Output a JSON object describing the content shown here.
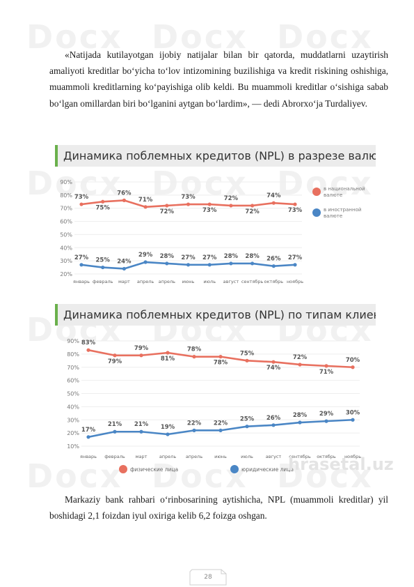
{
  "document": {
    "paragraph_1": "«Natijada kutilayotgan ijobiy natijalar bilan bir qatorda, muddatlarni uzaytirish amaliyoti kreditlar bo‘yicha to‘lov intizomining buzilishiga va kredit riskining oshishiga, muammoli kreditlarning ko‘payishiga olib keldi. Bu muammoli kreditlar o‘sishiga sabab bo‘lgan omillardan biri bo‘lganini aytgan bo‘lardim», — dedi Abrorxo‘ja Turdaliyev.",
    "paragraph_2": "Markaziy bank rahbari o‘rinbosarining aytishicha, NPL (muammoli kreditlar) yil boshidagi 2,1 foizdan iyul oxiriga kelib 6,2 foizga oshgan.",
    "page_number": "28",
    "watermark_text": "Docx",
    "brand_watermark": "hrasetal.uz"
  },
  "chart_data": [
    {
      "type": "line",
      "title": "Динамика поблемных кредитов (NPL) в разрезе валют",
      "categories": [
        "январь",
        "февраль",
        "март",
        "апрель",
        "апрель",
        "июнь",
        "июль",
        "август",
        "сентябрь",
        "октябрь",
        "ноябрь"
      ],
      "series": [
        {
          "name": "в национальной валюте",
          "color": "#e8705f",
          "values": [
            73,
            75,
            76,
            71,
            72,
            73,
            73,
            72,
            72,
            74,
            73
          ],
          "labels": [
            "73%",
            "75%",
            "76%",
            "71%",
            "72%",
            "73%",
            "73%",
            "72%",
            "72%",
            "74%",
            "73%"
          ]
        },
        {
          "name": "в иностранной валюте",
          "color": "#4a86c5",
          "values": [
            27,
            25,
            24,
            29,
            28,
            27,
            27,
            28,
            28,
            26,
            27
          ],
          "labels": [
            "27%",
            "25%",
            "24%",
            "29%",
            "28%",
            "27%",
            "27%",
            "28%",
            "28%",
            "26%",
            "27%"
          ]
        }
      ],
      "yticks": [
        "90%",
        "80%",
        "70%",
        "60%",
        "50%",
        "40%",
        "30%",
        "20%"
      ],
      "ylim": [
        20,
        90
      ],
      "grid": true,
      "legend": "right"
    },
    {
      "type": "line",
      "title": "Динамика поблемных кредитов (NPL) по типам клиентов",
      "categories": [
        "январь",
        "февраль",
        "март",
        "апрель",
        "апрель",
        "июнь",
        "июль",
        "август",
        "сентябрь",
        "октябрь",
        "ноябрь"
      ],
      "series": [
        {
          "name": "физические лица",
          "color": "#e8705f",
          "values": [
            83,
            79,
            79,
            81,
            78,
            78,
            75,
            74,
            72,
            71,
            70
          ],
          "labels": [
            "83%",
            "79%",
            "79%",
            "81%",
            "78%",
            "78%",
            "75%",
            "74%",
            "72%",
            "71%",
            "70%"
          ]
        },
        {
          "name": "юридические лица",
          "color": "#4a86c5",
          "values": [
            17,
            21,
            21,
            19,
            22,
            22,
            25,
            26,
            28,
            29,
            30
          ],
          "labels": [
            "17%",
            "21%",
            "21%",
            "19%",
            "22%",
            "22%",
            "25%",
            "26%",
            "28%",
            "29%",
            "30%"
          ]
        }
      ],
      "yticks": [
        "90%",
        "80%",
        "70%",
        "60%",
        "50%",
        "40%",
        "30%",
        "20%",
        "10%"
      ],
      "ylim": [
        10,
        90
      ],
      "grid": true,
      "legend": "bottom"
    }
  ]
}
